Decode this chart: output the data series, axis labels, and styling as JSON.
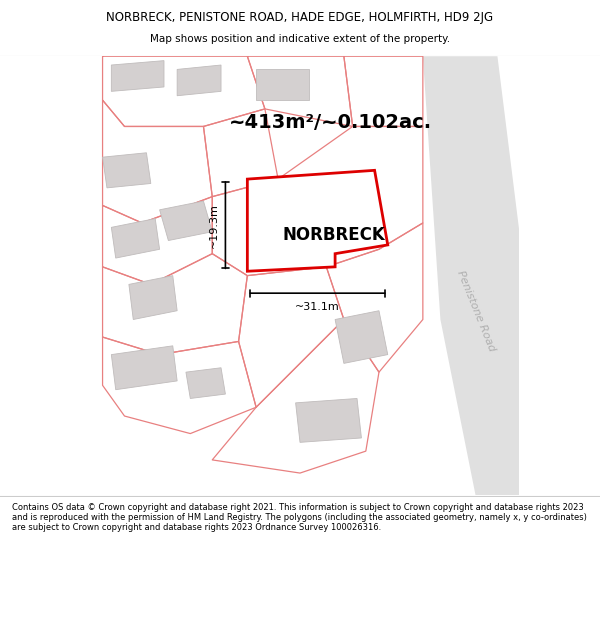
{
  "title_line1": "NORBRECK, PENISTONE ROAD, HADE EDGE, HOLMFIRTH, HD9 2JG",
  "title_line2": "Map shows position and indicative extent of the property.",
  "area_label": "~413m²/~0.102ac.",
  "width_label": "~31.1m",
  "height_label": "~19.3m",
  "property_label": "NORBRECK",
  "road_label": "Penistone Road",
  "footer_text": "Contains OS data © Crown copyright and database right 2021. This information is subject to Crown copyright and database rights 2023 and is reproduced with the permission of HM Land Registry. The polygons (including the associated geometry, namely x, y co-ordinates) are subject to Crown copyright and database rights 2023 Ordnance Survey 100026316.",
  "bg_color": "#ffffff",
  "map_bg": "#ffffff",
  "property_fill": "#ffffff",
  "property_outline": "#dd0000",
  "road_color_fill": "#e0e0e0",
  "road_color_edge": "#cccccc",
  "building_fill": "#d4d0d0",
  "building_edge": "#c0bcbc",
  "plot_line_color": "#e88080",
  "dim_color": "#000000",
  "title_fontsize": 8.5,
  "subtitle_fontsize": 7.5,
  "area_fontsize": 14,
  "label_fontsize": 11,
  "dim_fontsize": 8,
  "road_fontsize": 8,
  "footer_fontsize": 6.0
}
